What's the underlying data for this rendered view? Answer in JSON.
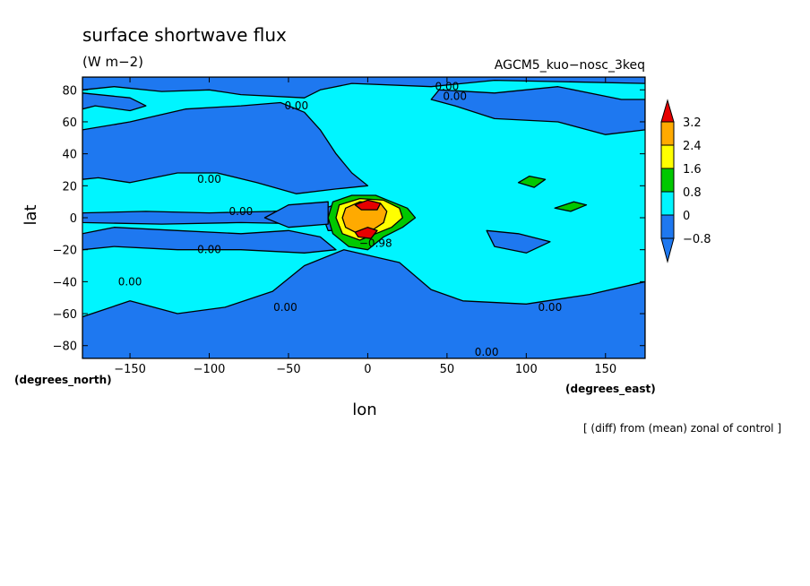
{
  "chart_data": {
    "type": "heatmap",
    "title": "surface shortwave flux",
    "units": "(W m−2)",
    "run_label": "AGCM5_kuo−nosc_3keq",
    "xlabel": "lon",
    "ylabel": "lat",
    "x_unit_label": "(degrees_east)",
    "y_unit_label": "(degrees_north)",
    "footnote": "[ (diff) from (mean) zonal of control ]",
    "xlim": [
      -180,
      175
    ],
    "ylim": [
      -88,
      88
    ],
    "x_ticks": [
      -150,
      -100,
      -50,
      0,
      50,
      100,
      150
    ],
    "x_tick_labels": [
      "−150",
      "−100",
      "−50",
      "0",
      "50",
      "100",
      "150"
    ],
    "y_ticks": [
      80,
      60,
      40,
      20,
      0,
      -20,
      -40,
      -60,
      -80
    ],
    "y_tick_labels": [
      "80",
      "60",
      "40",
      "20",
      "0",
      "−20",
      "−40",
      "−60",
      "−80"
    ],
    "colorbar": {
      "levels": [
        -0.8,
        0,
        0.8,
        1.6,
        2.4,
        3.2
      ],
      "level_labels": [
        "−0.8",
        "0",
        "0.8",
        "1.6",
        "2.4",
        "3.2"
      ],
      "colors": [
        "#1e78f0",
        "#00f5ff",
        "#00c800",
        "#ffff00",
        "#ffaa00",
        "#e60000"
      ]
    },
    "background_color": "#00f5ff",
    "regions": [
      {
        "name": "north-polar-negative",
        "level": "negative",
        "points": [
          [
            -180,
            88
          ],
          [
            175,
            88
          ],
          [
            175,
            84
          ],
          [
            80,
            86
          ],
          [
            40,
            82
          ],
          [
            -10,
            84
          ],
          [
            -30,
            80
          ],
          [
            -40,
            75
          ],
          [
            -80,
            77
          ],
          [
            -100,
            80
          ],
          [
            -130,
            79
          ],
          [
            -160,
            82
          ],
          [
            -180,
            80
          ]
        ]
      },
      {
        "name": "north-midlat-negative",
        "level": "negative",
        "points": [
          [
            -180,
            55
          ],
          [
            -150,
            60
          ],
          [
            -115,
            68
          ],
          [
            -80,
            70
          ],
          [
            -55,
            72
          ],
          [
            -40,
            66
          ],
          [
            -30,
            55
          ],
          [
            -20,
            40
          ],
          [
            -10,
            28
          ],
          [
            0,
            20
          ],
          [
            -20,
            18
          ],
          [
            -45,
            15
          ],
          [
            -70,
            22
          ],
          [
            -95,
            28
          ],
          [
            -120,
            28
          ],
          [
            -150,
            22
          ],
          [
            -170,
            25
          ],
          [
            -180,
            24
          ]
        ]
      },
      {
        "name": "north-pacific-negative",
        "level": "negative",
        "points": [
          [
            -180,
            78
          ],
          [
            -150,
            75
          ],
          [
            -140,
            70
          ],
          [
            -150,
            67
          ],
          [
            -172,
            70
          ],
          [
            -180,
            68
          ]
        ]
      },
      {
        "name": "ne-pacific-negative",
        "level": "negative",
        "points": [
          [
            45,
            80
          ],
          [
            80,
            78
          ],
          [
            120,
            82
          ],
          [
            160,
            74
          ],
          [
            175,
            74
          ],
          [
            175,
            55
          ],
          [
            150,
            52
          ],
          [
            120,
            60
          ],
          [
            80,
            62
          ],
          [
            55,
            70
          ],
          [
            40,
            74
          ]
        ]
      },
      {
        "name": "equatorial-strip-negative",
        "level": "negative",
        "points": [
          [
            -180,
            3
          ],
          [
            -140,
            4
          ],
          [
            -100,
            3
          ],
          [
            -60,
            4
          ],
          [
            -30,
            6
          ],
          [
            -10,
            6
          ],
          [
            -10,
            -2
          ],
          [
            -30,
            -4
          ],
          [
            -80,
            -3
          ],
          [
            -130,
            -4
          ],
          [
            -180,
            -3
          ]
        ]
      },
      {
        "name": "south-tropical-negative",
        "level": "negative",
        "points": [
          [
            -180,
            -10
          ],
          [
            -160,
            -6
          ],
          [
            -120,
            -8
          ],
          [
            -80,
            -10
          ],
          [
            -50,
            -8
          ],
          [
            -30,
            -12
          ],
          [
            -20,
            -20
          ],
          [
            -40,
            -22
          ],
          [
            -80,
            -20
          ],
          [
            -120,
            -20
          ],
          [
            -160,
            -18
          ],
          [
            -180,
            -20
          ]
        ]
      },
      {
        "name": "southern-ocean-negative",
        "level": "negative",
        "points": [
          [
            -180,
            -62
          ],
          [
            -150,
            -52
          ],
          [
            -120,
            -60
          ],
          [
            -90,
            -56
          ],
          [
            -60,
            -46
          ],
          [
            -40,
            -30
          ],
          [
            -15,
            -20
          ],
          [
            20,
            -28
          ],
          [
            40,
            -45
          ],
          [
            60,
            -52
          ],
          [
            100,
            -54
          ],
          [
            140,
            -48
          ],
          [
            175,
            -40
          ],
          [
            175,
            -88
          ],
          [
            -180,
            -88
          ]
        ]
      },
      {
        "name": "west-africa-negative",
        "level": "negative",
        "points": [
          [
            -30,
            5
          ],
          [
            -15,
            10
          ],
          [
            -10,
            -8
          ],
          [
            -25,
            -8
          ]
        ]
      },
      {
        "name": "east-pacific-negative",
        "level": "negative",
        "points": [
          [
            -65,
            0
          ],
          [
            -50,
            8
          ],
          [
            -25,
            10
          ],
          [
            -25,
            -4
          ],
          [
            -50,
            -6
          ]
        ]
      },
      {
        "name": "indian-ocean-negative",
        "level": "negative",
        "points": [
          [
            75,
            -8
          ],
          [
            95,
            -10
          ],
          [
            115,
            -15
          ],
          [
            100,
            -22
          ],
          [
            80,
            -18
          ]
        ]
      },
      {
        "name": "africa-south-positive",
        "level": "0.8",
        "points": [
          [
            -22,
            10
          ],
          [
            -10,
            14
          ],
          [
            5,
            14
          ],
          [
            15,
            10
          ],
          [
            25,
            6
          ],
          [
            30,
            0
          ],
          [
            22,
            -6
          ],
          [
            10,
            -12
          ],
          [
            0,
            -20
          ],
          [
            -12,
            -18
          ],
          [
            -22,
            -10
          ],
          [
            -25,
            0
          ]
        ]
      },
      {
        "name": "india-positive",
        "level": "0.8",
        "points": [
          [
            95,
            22
          ],
          [
            102,
            26
          ],
          [
            112,
            24
          ],
          [
            105,
            19
          ]
        ]
      },
      {
        "name": "maritime-positive",
        "level": "0.8",
        "points": [
          [
            118,
            6
          ],
          [
            130,
            10
          ],
          [
            138,
            8
          ],
          [
            128,
            4
          ]
        ]
      },
      {
        "name": "africa-yellow",
        "level": "1.6",
        "points": [
          [
            -18,
            8
          ],
          [
            -5,
            12
          ],
          [
            10,
            11
          ],
          [
            20,
            6
          ],
          [
            22,
            0
          ],
          [
            15,
            -6
          ],
          [
            5,
            -10
          ],
          [
            -5,
            -14
          ],
          [
            -16,
            -10
          ],
          [
            -20,
            0
          ]
        ]
      },
      {
        "name": "africa-orange",
        "level": "2.4",
        "points": [
          [
            -14,
            6
          ],
          [
            -5,
            10
          ],
          [
            8,
            9
          ],
          [
            12,
            4
          ],
          [
            10,
            -3
          ],
          [
            4,
            -7
          ],
          [
            -6,
            -10
          ],
          [
            -14,
            -6
          ],
          [
            -16,
            0
          ]
        ]
      },
      {
        "name": "africa-red-north",
        "level": "3.2",
        "points": [
          [
            -8,
            8
          ],
          [
            0,
            11
          ],
          [
            8,
            9
          ],
          [
            6,
            5
          ],
          [
            -4,
            5
          ]
        ]
      },
      {
        "name": "africa-red-south",
        "level": "3.2",
        "points": [
          [
            -8,
            -9
          ],
          [
            0,
            -6
          ],
          [
            6,
            -8
          ],
          [
            2,
            -13
          ],
          [
            -6,
            -12
          ]
        ]
      }
    ],
    "contour_labels": [
      {
        "text": "0.00",
        "lon": 50,
        "lat": 82
      },
      {
        "text": "0.00",
        "lon": 55,
        "lat": 76
      },
      {
        "text": "0.00",
        "lon": -45,
        "lat": 70
      },
      {
        "text": "0.00",
        "lon": -100,
        "lat": 24
      },
      {
        "text": "0.00",
        "lon": -80,
        "lat": 4
      },
      {
        "text": "0.00",
        "lon": -100,
        "lat": -20
      },
      {
        "text": "−0.98",
        "lon": 5,
        "lat": -16
      },
      {
        "text": "0.00",
        "lon": -150,
        "lat": -40
      },
      {
        "text": "0.00",
        "lon": -52,
        "lat": -56
      },
      {
        "text": "0.00",
        "lon": 115,
        "lat": -56
      },
      {
        "text": "0.00",
        "lon": 75,
        "lat": -84
      }
    ]
  }
}
